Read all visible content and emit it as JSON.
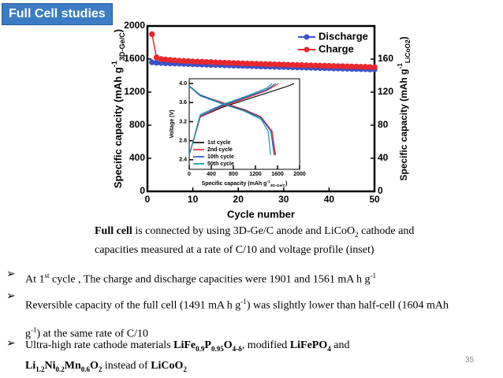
{
  "header": "Full Cell studies",
  "chart_data": [
    {
      "type": "line",
      "xlabel": "Cycle number",
      "ylabel": [
        {
          "t": "Specific capacity (mAh g"
        },
        {
          "t": "-1",
          "s": "sup"
        },
        {
          "t": "3D-Ge/C",
          "s": "sub"
        },
        {
          "t": ")"
        }
      ],
      "y2label": [
        {
          "t": "Specific capacity (mAh g"
        },
        {
          "t": "-1",
          "s": "sup"
        },
        {
          "t": "LiCoO2",
          "s": "sub"
        },
        {
          "t": ")"
        }
      ],
      "xlim": [
        0,
        50
      ],
      "xticks": [
        0,
        10,
        20,
        30,
        40,
        50
      ],
      "ylim": [
        0,
        2000
      ],
      "yticks": [
        0,
        400,
        800,
        1200,
        1600,
        2000
      ],
      "y2lim": [
        0,
        200
      ],
      "y2ticks": [
        0,
        40,
        80,
        120,
        160
      ],
      "legend": "top-right",
      "x": [
        1,
        2,
        3,
        4,
        5,
        6,
        7,
        8,
        9,
        10,
        11,
        12,
        13,
        14,
        15,
        16,
        17,
        18,
        19,
        20,
        21,
        22,
        23,
        24,
        25,
        26,
        27,
        28,
        29,
        30,
        31,
        32,
        33,
        34,
        35,
        36,
        37,
        38,
        39,
        40,
        41,
        42,
        43,
        44,
        45,
        46,
        47,
        48,
        49,
        50
      ],
      "series": [
        {
          "name": "Discharge",
          "color": "#3a52c8",
          "values": [
            1561,
            1555,
            1552,
            1550,
            1548,
            1546,
            1544,
            1542,
            1540,
            1538,
            1536,
            1534,
            1532,
            1530,
            1528,
            1527,
            1525,
            1523,
            1521,
            1520,
            1518,
            1516,
            1515,
            1513,
            1511,
            1510,
            1508,
            1507,
            1505,
            1504,
            1502,
            1501,
            1499,
            1498,
            1496,
            1495,
            1493,
            1492,
            1490,
            1489,
            1487,
            1486,
            1484,
            1483,
            1481,
            1480,
            1478,
            1477,
            1475,
            1474
          ]
        },
        {
          "name": "Charge",
          "color": "#e8282e",
          "values": [
            1901,
            1620,
            1600,
            1595,
            1590,
            1585,
            1580,
            1578,
            1575,
            1572,
            1570,
            1568,
            1565,
            1563,
            1560,
            1558,
            1556,
            1554,
            1552,
            1550,
            1548,
            1546,
            1545,
            1543,
            1541,
            1540,
            1538,
            1536,
            1535,
            1533,
            1531,
            1530,
            1528,
            1527,
            1525,
            1524,
            1522,
            1521,
            1519,
            1518,
            1516,
            1515,
            1513,
            1512,
            1510,
            1509,
            1507,
            1506,
            1504,
            1503
          ]
        }
      ]
    },
    {
      "type": "line",
      "xlabel": [
        {
          "t": "Specific capacity (mAh g"
        },
        {
          "t": "-1",
          "s": "sup"
        },
        {
          "t": "3D-Ge/C",
          "s": "sub"
        },
        {
          "t": ")"
        }
      ],
      "ylabel": [
        {
          "t": "Voltage (V)"
        }
      ],
      "xlim": [
        0,
        2000
      ],
      "xticks": [
        0,
        400,
        800,
        1200,
        1600,
        2000
      ],
      "ylim": [
        2.2,
        4.1
      ],
      "yticks": [
        2.4,
        2.8,
        3.2,
        3.6,
        {
          "value": 4,
          "label": "4.0"
        }
      ],
      "legend": "bottom-left",
      "series": [
        {
          "name": "1st cycle",
          "color": "#111111",
          "x": [
            0,
            200,
            600,
            1000,
            1400,
            1800,
            1900,
            null,
            0,
            200,
            600,
            1000,
            1300,
            1500,
            1561
          ],
          "values": [
            2.5,
            3.3,
            3.5,
            3.65,
            3.8,
            3.95,
            4.0,
            null,
            3.95,
            3.75,
            3.6,
            3.45,
            3.3,
            3.0,
            2.5
          ]
        },
        {
          "name": "2nd cycle",
          "color": "#e0302c",
          "x": [
            0,
            200,
            600,
            1000,
            1400,
            1620,
            null,
            0,
            200,
            600,
            1000,
            1300,
            1500,
            1555
          ],
          "values": [
            2.5,
            3.3,
            3.52,
            3.68,
            3.85,
            4.0,
            null,
            3.95,
            3.76,
            3.6,
            3.44,
            3.3,
            3.0,
            2.5
          ]
        },
        {
          "name": "10th cycle",
          "color": "#2f55c8",
          "x": [
            0,
            200,
            600,
            1000,
            1400,
            1570,
            null,
            0,
            200,
            600,
            1000,
            1300,
            1480,
            1538
          ],
          "values": [
            2.5,
            3.32,
            3.54,
            3.7,
            3.87,
            4.0,
            null,
            3.95,
            3.76,
            3.58,
            3.43,
            3.28,
            3.0,
            2.5
          ]
        },
        {
          "name": "50th cycle",
          "color": "#1f9aa8",
          "x": [
            0,
            200,
            600,
            1000,
            1400,
            1503,
            null,
            0,
            200,
            600,
            1000,
            1300,
            1430,
            1474
          ],
          "values": [
            2.5,
            3.35,
            3.56,
            3.72,
            3.9,
            4.0,
            null,
            3.94,
            3.74,
            3.57,
            3.42,
            3.25,
            3.0,
            2.5
          ]
        }
      ]
    }
  ],
  "caption": [
    {
      "t": "Full cell",
      "s": "b"
    },
    {
      "t": "  is connected by using 3D-Ge/C anode and  LiCoO"
    },
    {
      "t": "2",
      "s": "sub"
    },
    {
      "t": " cathode and capacities measured at a rate of C/10 and voltage profile (inset)"
    }
  ],
  "bullets": [
    [
      {
        "t": "At 1"
      },
      {
        "t": "st",
        "s": "sup"
      },
      {
        "t": " cycle , The charge and discharge capacities  were 1901 and 1561 mA h g"
      },
      {
        "t": "-1",
        "s": "sup"
      }
    ],
    [
      {
        "t": "Reversible capacity of the full cell (1491 mA h g"
      },
      {
        "t": "-1",
        "s": "sup"
      },
      {
        "t": ") was slightly lower than  half-cell (1604 mAh g"
      },
      {
        "t": "-1",
        "s": "sup"
      },
      {
        "t": ") at the same rate of C/10"
      }
    ],
    [
      {
        "t": "Ultra-high rate cathode materials  "
      },
      {
        "t": "LiFe",
        "s": "b"
      },
      {
        "t": "0.9",
        "s": "bsub"
      },
      {
        "t": "P",
        "s": "b"
      },
      {
        "t": "0.95",
        "s": "bsub"
      },
      {
        "t": "O",
        "s": "b"
      },
      {
        "t": "4-δ",
        "s": "bsub"
      },
      {
        "t": ", modified "
      },
      {
        "t": "LiFePO",
        "s": "b"
      },
      {
        "t": "4",
        "s": "bsub"
      },
      {
        "t": " and "
      },
      {
        "t": "Li",
        "s": "b"
      },
      {
        "t": "1.2",
        "s": "bsub"
      },
      {
        "t": "Ni",
        "s": "b"
      },
      {
        "t": "0.2",
        "s": "bsub"
      },
      {
        "t": "Mn",
        "s": "b"
      },
      {
        "t": "0.6",
        "s": "bsub"
      },
      {
        "t": "O",
        "s": "b"
      },
      {
        "t": "2",
        "s": "bsub"
      },
      {
        "t": " instead of "
      },
      {
        "t": "LiCoO",
        "s": "b"
      },
      {
        "t": "2",
        "s": "bsub"
      }
    ]
  ],
  "page_number": "35"
}
